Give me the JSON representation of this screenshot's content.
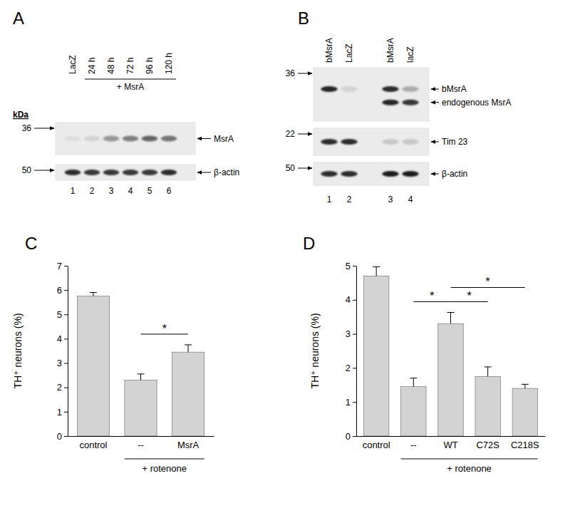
{
  "blots": [
    {
      "title": "A",
      "marker_unit": "kDa",
      "lane_groups": [
        [
          "LacZ",
          "24 h",
          "48 h",
          "72 h",
          "96 h",
          "120 h"
        ]
      ],
      "lane_numbers": [
        1,
        2,
        3,
        4,
        5,
        6
      ],
      "group": {
        "text": "+ MsrA",
        "from": "24 h",
        "to": "120 h"
      },
      "strips": [
        {
          "marker": 36,
          "bands": [
            {
              "label": "MsrA",
              "intensity": [
                0.05,
                0.1,
                0.4,
                0.5,
                0.65,
                0.55
              ]
            }
          ]
        },
        {
          "marker": 50,
          "bands": [
            {
              "label": "β-actin",
              "intensity": [
                0.9,
                0.85,
                0.85,
                0.85,
                0.85,
                0.9
              ]
            }
          ]
        }
      ]
    },
    {
      "title": "B",
      "lane_groups": [
        [
          "bMsrA",
          "LacZ"
        ],
        [
          "bMsrA",
          "lacZ"
        ]
      ],
      "lane_numbers": [
        1,
        2,
        3,
        4
      ],
      "strips": [
        {
          "marker": 36,
          "bands": [
            {
              "label": "bMsrA",
              "intensity": [
                0.95,
                0.1,
                0.9,
                0.3
              ]
            },
            {
              "label": "endogenous MsrA",
              "intensity": [
                0,
                0,
                0.95,
                0.85
              ]
            }
          ]
        },
        {
          "marker": 22,
          "bands": [
            {
              "label": "Tim 23",
              "intensity": [
                0.9,
                0.9,
                0.15,
                0.15
              ]
            }
          ]
        },
        {
          "marker": 50,
          "bands": [
            {
              "label": "β-actin",
              "intensity": [
                0.9,
                0.9,
                1,
                1
              ]
            }
          ]
        }
      ]
    }
  ],
  "chart_data": [
    {
      "type": "bar",
      "title": "C",
      "y_label": "TH⁺ neurons (%)",
      "categories": [
        "control",
        "--",
        "MsrA"
      ],
      "values": [
        5.75,
        2.3,
        3.45
      ],
      "errors": [
        0.15,
        0.25,
        0.3
      ],
      "color": "#d3d3d3",
      "ylim": [
        0,
        7
      ],
      "yticks": [
        0,
        1,
        2,
        3,
        4,
        5,
        6,
        7
      ],
      "annotations": [
        {
          "text": "+ rotenone",
          "from": "--",
          "to": "MsrA"
        }
      ],
      "significance": [
        {
          "text": "*",
          "from": "--",
          "to": "MsrA"
        }
      ]
    },
    {
      "type": "bar",
      "title": "D",
      "y_label": "TH⁺ neurons (%)",
      "categories": [
        "control",
        "--",
        "WT",
        "C72S",
        "C218S"
      ],
      "values": [
        4.7,
        1.45,
        3.3,
        1.75,
        1.4
      ],
      "errors": [
        0.27,
        0.25,
        0.33,
        0.28,
        0.12
      ],
      "color": "#d3d3d3",
      "ylim": [
        0,
        5
      ],
      "yticks": [
        0,
        1,
        2,
        3,
        4,
        5
      ],
      "annotations": [
        {
          "text": "+ rotenone",
          "from": "--",
          "to": "C218S"
        }
      ],
      "significance": [
        {
          "text": "*",
          "from": "--",
          "to": "WT"
        },
        {
          "text": "*",
          "from": "WT",
          "to": "C72S"
        },
        {
          "text": "*",
          "from": "WT",
          "to": "C218S"
        }
      ]
    }
  ]
}
